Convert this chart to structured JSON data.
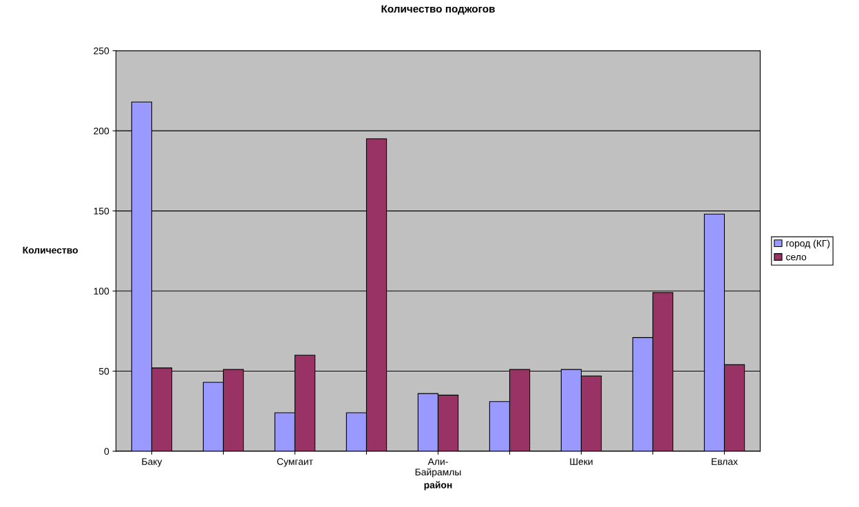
{
  "chart_data": {
    "type": "bar",
    "title": "Количество поджогов",
    "xlabel": "район",
    "ylabel": "Количество",
    "categories": [
      "Баку",
      null,
      "Сумгаит",
      null,
      "Али-\nБайрамлы",
      null,
      "Шеки",
      null,
      "Евлах"
    ],
    "series": [
      {
        "name": "город (КГ)",
        "color": "#9999ff",
        "values": [
          218,
          43,
          24,
          24,
          36,
          31,
          51,
          71,
          148
        ]
      },
      {
        "name": "село",
        "color": "#993366",
        "values": [
          52,
          51,
          60,
          195,
          35,
          51,
          47,
          99,
          54
        ]
      }
    ],
    "ylim": [
      0,
      250
    ],
    "yticks": [
      0,
      50,
      100,
      150,
      200,
      250
    ],
    "grid": "y",
    "legend": "right"
  }
}
